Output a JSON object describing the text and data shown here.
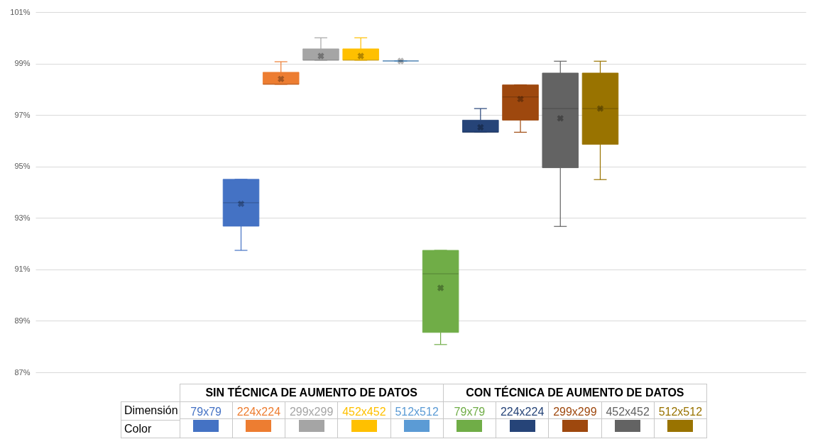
{
  "chart_data": {
    "type": "box",
    "categories": [
      null
    ],
    "ylim": [
      87,
      101
    ],
    "yticks": [
      {
        "value": 87,
        "label": "87%"
      },
      {
        "value": 89,
        "label": "89%"
      },
      {
        "value": 91,
        "label": "91%"
      },
      {
        "value": 93,
        "label": "93%"
      },
      {
        "value": 95,
        "label": "95%"
      },
      {
        "value": 97,
        "label": "97%"
      },
      {
        "value": 99,
        "label": "99%"
      },
      {
        "value": 101,
        "label": "101%"
      }
    ],
    "grid": "y",
    "legend": "bottom",
    "tick_labels": "y",
    "marker": "cross",
    "legend_title": "Dimensión",
    "annotations": [
      "SIN TÉCNICA DE AUMENTO DE DATOS",
      "CON TÉCNICA DE AUMENTO DE DATOS",
      "Color"
    ],
    "series": [
      {
        "name": "79x79",
        "color": "#4472c4",
        "boxes": [
          {
            "low": 91.74,
            "q1": 92.68,
            "median": 93.59,
            "q3": 94.5,
            "high": 94.5,
            "mean": 93.55
          }
        ]
      },
      {
        "name": "224x224",
        "color": "#ed7d31",
        "boxes": [
          {
            "low": 98.19,
            "q1": 98.19,
            "median": 98.2,
            "q3": 98.66,
            "high": 99.07,
            "mean": 98.4
          }
        ]
      },
      {
        "name": "299x299",
        "color": "#a5a5a5",
        "boxes": [
          {
            "low": 99.13,
            "q1": 99.13,
            "median": 99.13,
            "q3": 99.57,
            "high": 100.0,
            "mean": 99.29
          }
        ]
      },
      {
        "name": "452x452",
        "color": "#ffc000",
        "boxes": [
          {
            "low": 99.13,
            "q1": 99.13,
            "median": 99.13,
            "q3": 99.57,
            "high": 100.0,
            "mean": 99.29
          }
        ]
      },
      {
        "name": "512x512",
        "color": "#5b9bd5",
        "boxes": [
          {
            "low": 99.1,
            "q1": 99.1,
            "median": 99.1,
            "q3": 99.1,
            "high": 99.1,
            "mean": 99.1
          }
        ]
      },
      {
        "name": "79x79",
        "color": "#70ad47",
        "boxes": [
          {
            "low": 88.08,
            "q1": 88.55,
            "median": 90.83,
            "q3": 91.74,
            "high": 91.74,
            "mean": 90.28
          }
        ]
      },
      {
        "name": "224x224",
        "color": "#264478",
        "boxes": [
          {
            "low": 96.33,
            "q1": 96.33,
            "median": 96.33,
            "q3": 96.8,
            "high": 97.25,
            "mean": 96.52
          }
        ]
      },
      {
        "name": "299x299",
        "color": "#9e480e",
        "boxes": [
          {
            "low": 96.33,
            "q1": 96.8,
            "median": 97.7,
            "q3": 98.17,
            "high": 98.17,
            "mean": 97.62
          }
        ]
      },
      {
        "name": "452x452",
        "color": "#636363",
        "boxes": [
          {
            "low": 92.67,
            "q1": 94.95,
            "median": 97.25,
            "q3": 98.63,
            "high": 99.09,
            "mean": 96.87
          }
        ]
      },
      {
        "name": "512x512",
        "color": "#997300",
        "boxes": [
          {
            "low": 94.49,
            "q1": 95.86,
            "median": 97.25,
            "q3": 98.63,
            "high": 99.09,
            "mean": 97.25
          }
        ]
      }
    ]
  }
}
